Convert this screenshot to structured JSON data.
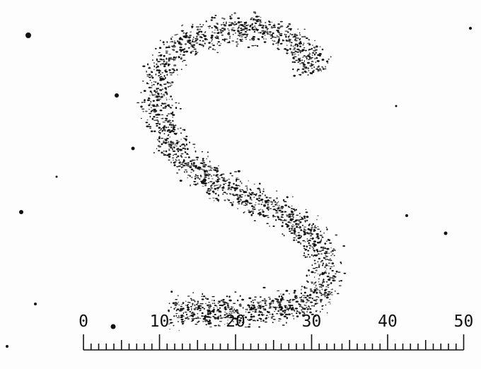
{
  "ruler": {
    "labels": [
      "0",
      "10",
      "20",
      "30",
      "40",
      "50"
    ]
  }
}
